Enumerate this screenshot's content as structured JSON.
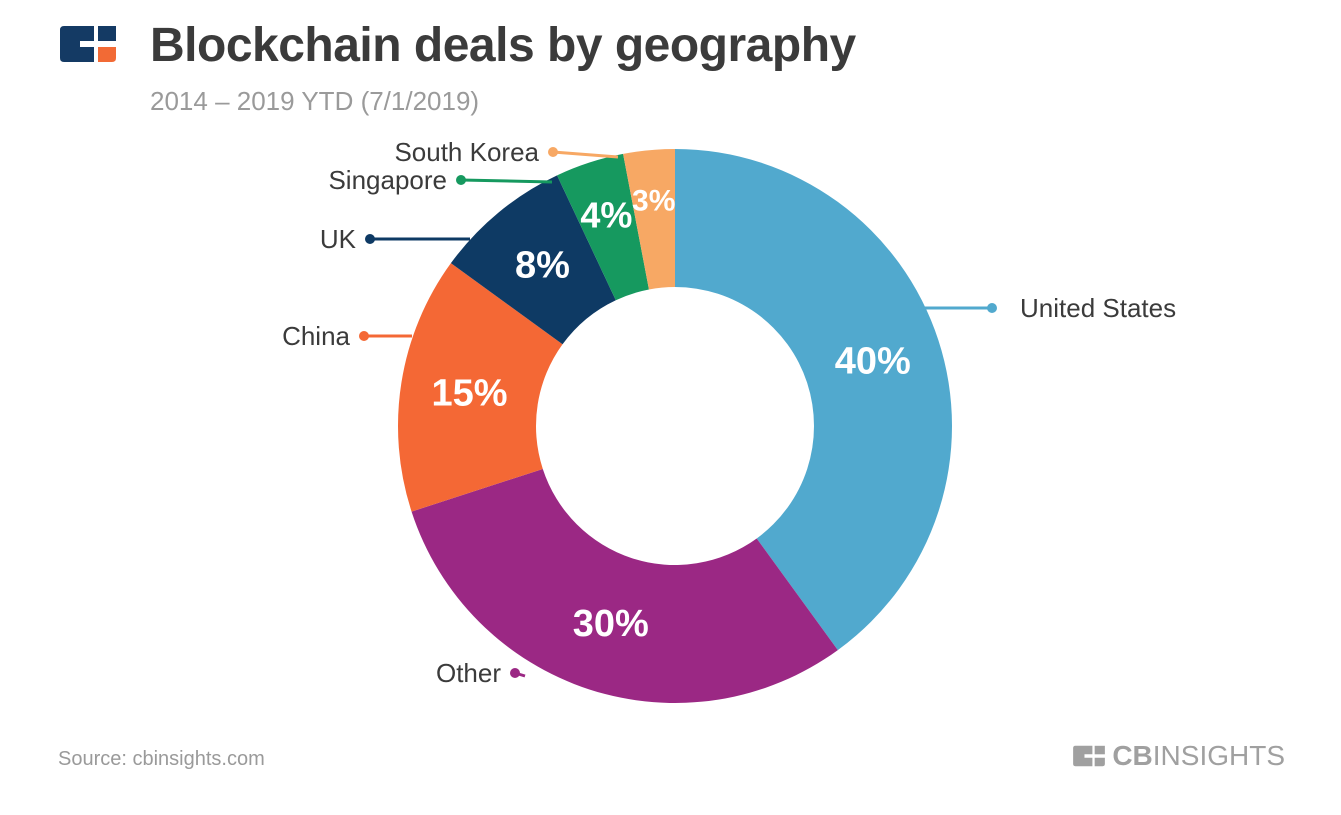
{
  "header": {
    "title": "Blockchain deals by geography",
    "subtitle": "2014 – 2019 YTD (7/1/2019)"
  },
  "colors": {
    "logo_blue": "#143a64",
    "logo_orange": "#f26a35",
    "title": "#3b3b3b",
    "muted": "#9a9a9a"
  },
  "chart_data": {
    "type": "pie",
    "donut": true,
    "unit": "%",
    "slices": [
      {
        "label": "United States",
        "value": 40,
        "value_label": "40%",
        "color": "#51a9ce"
      },
      {
        "label": "Other",
        "value": 30,
        "value_label": "30%",
        "color": "#9b2884"
      },
      {
        "label": "China",
        "value": 15,
        "value_label": "15%",
        "color": "#f46835"
      },
      {
        "label": "UK",
        "value": 8,
        "value_label": "8%",
        "color": "#0e3a64"
      },
      {
        "label": "Singapore",
        "value": 4,
        "value_label": "4%",
        "color": "#16995f"
      },
      {
        "label": "South Korea",
        "value": 3,
        "value_label": "3%",
        "color": "#f7a864"
      }
    ]
  },
  "footer": {
    "source": "Source: cbinsights.com",
    "brand_bold": "CB",
    "brand_light": "INSIGHTS"
  }
}
